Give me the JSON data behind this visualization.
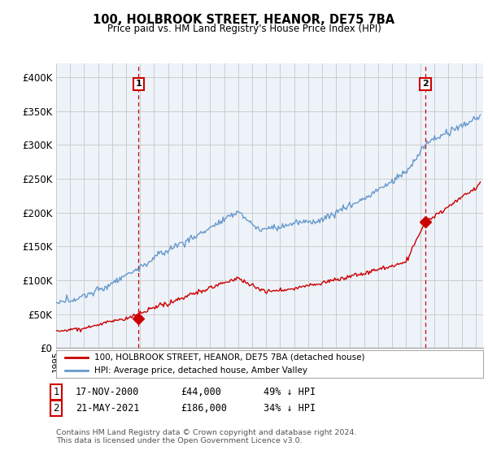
{
  "title": "100, HOLBROOK STREET, HEANOR, DE75 7BA",
  "subtitle": "Price paid vs. HM Land Registry's House Price Index (HPI)",
  "bg_color": "#ffffff",
  "plot_bg_color": "#eef3fa",
  "grid_color": "#cccccc",
  "ylim": [
    0,
    420000
  ],
  "yticks": [
    0,
    50000,
    100000,
    150000,
    200000,
    250000,
    300000,
    350000,
    400000
  ],
  "ytick_labels": [
    "£0",
    "£50K",
    "£100K",
    "£150K",
    "£200K",
    "£250K",
    "£300K",
    "£350K",
    "£400K"
  ],
  "sale1_price": 44000,
  "sale1_x": 2000.88,
  "sale2_price": 186000,
  "sale2_x": 2021.38,
  "red_line_color": "#cc0000",
  "blue_line_color": "#6699cc",
  "dashed_line_color": "#cc0000",
  "legend_label1": "100, HOLBROOK STREET, HEANOR, DE75 7BA (detached house)",
  "legend_label2": "HPI: Average price, detached house, Amber Valley",
  "footnote": "Contains HM Land Registry data © Crown copyright and database right 2024.\nThis data is licensed under the Open Government Licence v3.0.",
  "table_row1": [
    "1",
    "17-NOV-2000",
    "£44,000",
    "49% ↓ HPI"
  ],
  "table_row2": [
    "2",
    "21-MAY-2021",
    "£186,000",
    "34% ↓ HPI"
  ]
}
